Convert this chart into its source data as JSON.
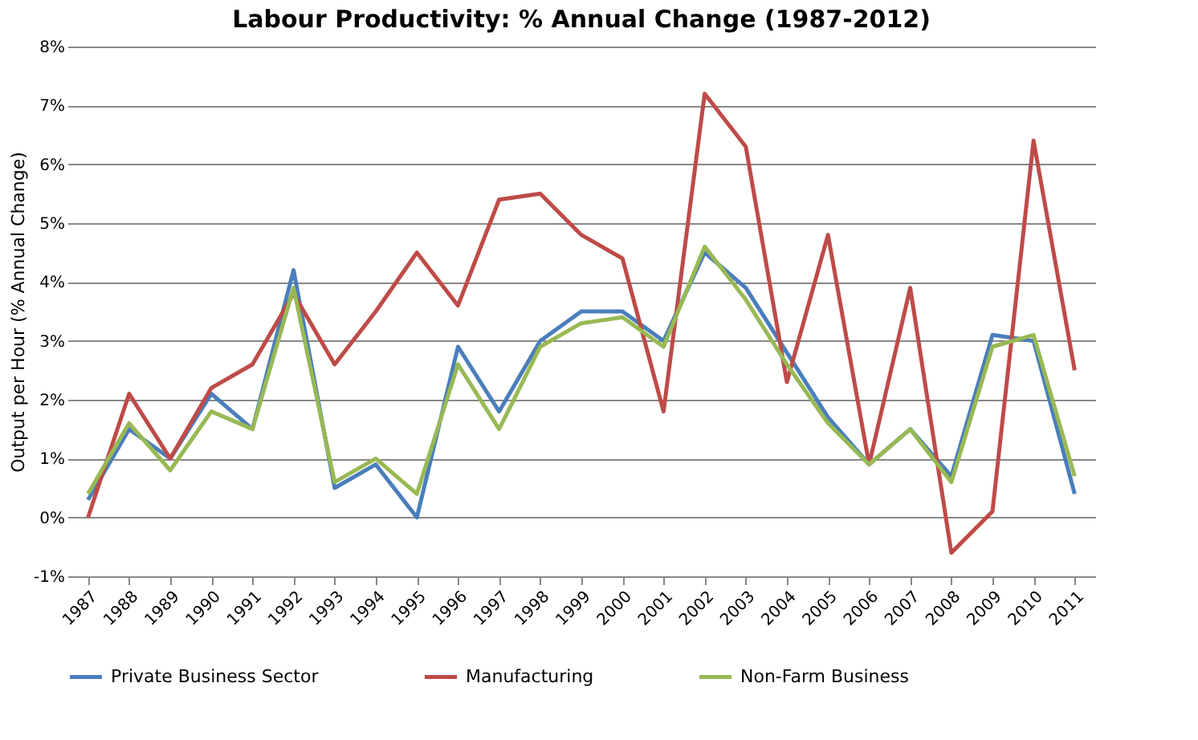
{
  "chart_data": {
    "type": "line",
    "title": "Labour Productivity: % Annual Change (1987-2012)",
    "ylabel": "Output per Hour (% Annual Change)",
    "categories": [
      "1987",
      "1988",
      "1989",
      "1990",
      "1991",
      "1992",
      "1993",
      "1994",
      "1995",
      "1996",
      "1997",
      "1998",
      "1999",
      "2000",
      "2001",
      "2002",
      "2003",
      "2004",
      "2005",
      "2006",
      "2007",
      "2008",
      "2009",
      "2010",
      "2011"
    ],
    "series": [
      {
        "name": "Private Business Sector",
        "color": "#4a7ebb",
        "values": [
          0.3,
          1.5,
          1.0,
          2.1,
          1.5,
          4.2,
          0.5,
          0.9,
          0.0,
          2.9,
          1.8,
          3.0,
          3.5,
          3.5,
          3.0,
          4.5,
          3.9,
          2.8,
          1.7,
          0.9,
          1.5,
          0.7,
          3.1,
          3.0,
          0.4
        ]
      },
      {
        "name": "Manufacturing",
        "color": "#be4b48",
        "values": [
          0.0,
          2.1,
          1.0,
          2.2,
          2.6,
          3.8,
          2.6,
          3.5,
          4.5,
          3.6,
          5.4,
          5.5,
          4.8,
          4.4,
          1.8,
          7.2,
          6.3,
          2.3,
          4.8,
          0.9,
          3.9,
          -0.6,
          0.1,
          6.4,
          2.5
        ]
      },
      {
        "name": "Non-Farm Business",
        "color": "#98b954",
        "values": [
          0.4,
          1.6,
          0.8,
          1.8,
          1.5,
          3.9,
          0.6,
          1.0,
          0.4,
          2.6,
          1.5,
          2.9,
          3.3,
          3.4,
          2.9,
          4.6,
          3.7,
          2.6,
          1.6,
          0.9,
          1.5,
          0.6,
          2.9,
          3.1,
          0.7
        ]
      }
    ],
    "ylim": [
      -1,
      8
    ],
    "yticks": [
      {
        "value": -1,
        "label": "-1%"
      },
      {
        "value": 0,
        "label": "0%"
      },
      {
        "value": 1,
        "label": "1%"
      },
      {
        "value": 2,
        "label": "2%"
      },
      {
        "value": 3,
        "label": "3%"
      },
      {
        "value": 4,
        "label": "4%"
      },
      {
        "value": 5,
        "label": "5%"
      },
      {
        "value": 6,
        "label": "6%"
      },
      {
        "value": 7,
        "label": "7%"
      },
      {
        "value": 8,
        "label": "8%"
      }
    ],
    "grid": "y",
    "legend": "bottom",
    "marker": "none",
    "line_style": "solid"
  }
}
